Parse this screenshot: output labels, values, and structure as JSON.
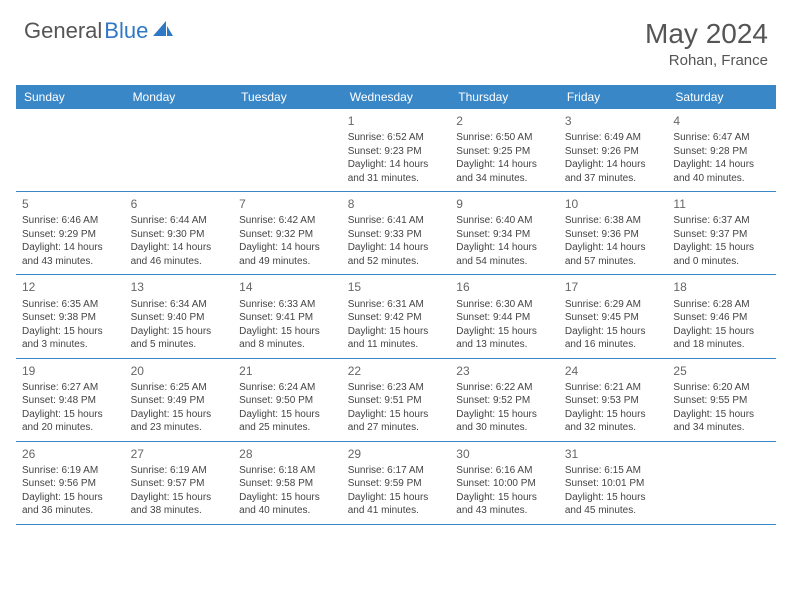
{
  "logo": {
    "text1": "General",
    "text2": "Blue"
  },
  "title": "May 2024",
  "location": "Rohan, France",
  "dayNames": [
    "Sunday",
    "Monday",
    "Tuesday",
    "Wednesday",
    "Thursday",
    "Friday",
    "Saturday"
  ],
  "colors": {
    "headerBg": "#3a87c8",
    "headerText": "#ffffff",
    "bodyText": "#444444",
    "titleText": "#555555",
    "border": "#3a87c8"
  },
  "weeks": [
    [
      null,
      null,
      null,
      {
        "n": "1",
        "sr": "Sunrise: 6:52 AM",
        "ss": "Sunset: 9:23 PM",
        "d1": "Daylight: 14 hours",
        "d2": "and 31 minutes."
      },
      {
        "n": "2",
        "sr": "Sunrise: 6:50 AM",
        "ss": "Sunset: 9:25 PM",
        "d1": "Daylight: 14 hours",
        "d2": "and 34 minutes."
      },
      {
        "n": "3",
        "sr": "Sunrise: 6:49 AM",
        "ss": "Sunset: 9:26 PM",
        "d1": "Daylight: 14 hours",
        "d2": "and 37 minutes."
      },
      {
        "n": "4",
        "sr": "Sunrise: 6:47 AM",
        "ss": "Sunset: 9:28 PM",
        "d1": "Daylight: 14 hours",
        "d2": "and 40 minutes."
      }
    ],
    [
      {
        "n": "5",
        "sr": "Sunrise: 6:46 AM",
        "ss": "Sunset: 9:29 PM",
        "d1": "Daylight: 14 hours",
        "d2": "and 43 minutes."
      },
      {
        "n": "6",
        "sr": "Sunrise: 6:44 AM",
        "ss": "Sunset: 9:30 PM",
        "d1": "Daylight: 14 hours",
        "d2": "and 46 minutes."
      },
      {
        "n": "7",
        "sr": "Sunrise: 6:42 AM",
        "ss": "Sunset: 9:32 PM",
        "d1": "Daylight: 14 hours",
        "d2": "and 49 minutes."
      },
      {
        "n": "8",
        "sr": "Sunrise: 6:41 AM",
        "ss": "Sunset: 9:33 PM",
        "d1": "Daylight: 14 hours",
        "d2": "and 52 minutes."
      },
      {
        "n": "9",
        "sr": "Sunrise: 6:40 AM",
        "ss": "Sunset: 9:34 PM",
        "d1": "Daylight: 14 hours",
        "d2": "and 54 minutes."
      },
      {
        "n": "10",
        "sr": "Sunrise: 6:38 AM",
        "ss": "Sunset: 9:36 PM",
        "d1": "Daylight: 14 hours",
        "d2": "and 57 minutes."
      },
      {
        "n": "11",
        "sr": "Sunrise: 6:37 AM",
        "ss": "Sunset: 9:37 PM",
        "d1": "Daylight: 15 hours",
        "d2": "and 0 minutes."
      }
    ],
    [
      {
        "n": "12",
        "sr": "Sunrise: 6:35 AM",
        "ss": "Sunset: 9:38 PM",
        "d1": "Daylight: 15 hours",
        "d2": "and 3 minutes."
      },
      {
        "n": "13",
        "sr": "Sunrise: 6:34 AM",
        "ss": "Sunset: 9:40 PM",
        "d1": "Daylight: 15 hours",
        "d2": "and 5 minutes."
      },
      {
        "n": "14",
        "sr": "Sunrise: 6:33 AM",
        "ss": "Sunset: 9:41 PM",
        "d1": "Daylight: 15 hours",
        "d2": "and 8 minutes."
      },
      {
        "n": "15",
        "sr": "Sunrise: 6:31 AM",
        "ss": "Sunset: 9:42 PM",
        "d1": "Daylight: 15 hours",
        "d2": "and 11 minutes."
      },
      {
        "n": "16",
        "sr": "Sunrise: 6:30 AM",
        "ss": "Sunset: 9:44 PM",
        "d1": "Daylight: 15 hours",
        "d2": "and 13 minutes."
      },
      {
        "n": "17",
        "sr": "Sunrise: 6:29 AM",
        "ss": "Sunset: 9:45 PM",
        "d1": "Daylight: 15 hours",
        "d2": "and 16 minutes."
      },
      {
        "n": "18",
        "sr": "Sunrise: 6:28 AM",
        "ss": "Sunset: 9:46 PM",
        "d1": "Daylight: 15 hours",
        "d2": "and 18 minutes."
      }
    ],
    [
      {
        "n": "19",
        "sr": "Sunrise: 6:27 AM",
        "ss": "Sunset: 9:48 PM",
        "d1": "Daylight: 15 hours",
        "d2": "and 20 minutes."
      },
      {
        "n": "20",
        "sr": "Sunrise: 6:25 AM",
        "ss": "Sunset: 9:49 PM",
        "d1": "Daylight: 15 hours",
        "d2": "and 23 minutes."
      },
      {
        "n": "21",
        "sr": "Sunrise: 6:24 AM",
        "ss": "Sunset: 9:50 PM",
        "d1": "Daylight: 15 hours",
        "d2": "and 25 minutes."
      },
      {
        "n": "22",
        "sr": "Sunrise: 6:23 AM",
        "ss": "Sunset: 9:51 PM",
        "d1": "Daylight: 15 hours",
        "d2": "and 27 minutes."
      },
      {
        "n": "23",
        "sr": "Sunrise: 6:22 AM",
        "ss": "Sunset: 9:52 PM",
        "d1": "Daylight: 15 hours",
        "d2": "and 30 minutes."
      },
      {
        "n": "24",
        "sr": "Sunrise: 6:21 AM",
        "ss": "Sunset: 9:53 PM",
        "d1": "Daylight: 15 hours",
        "d2": "and 32 minutes."
      },
      {
        "n": "25",
        "sr": "Sunrise: 6:20 AM",
        "ss": "Sunset: 9:55 PM",
        "d1": "Daylight: 15 hours",
        "d2": "and 34 minutes."
      }
    ],
    [
      {
        "n": "26",
        "sr": "Sunrise: 6:19 AM",
        "ss": "Sunset: 9:56 PM",
        "d1": "Daylight: 15 hours",
        "d2": "and 36 minutes."
      },
      {
        "n": "27",
        "sr": "Sunrise: 6:19 AM",
        "ss": "Sunset: 9:57 PM",
        "d1": "Daylight: 15 hours",
        "d2": "and 38 minutes."
      },
      {
        "n": "28",
        "sr": "Sunrise: 6:18 AM",
        "ss": "Sunset: 9:58 PM",
        "d1": "Daylight: 15 hours",
        "d2": "and 40 minutes."
      },
      {
        "n": "29",
        "sr": "Sunrise: 6:17 AM",
        "ss": "Sunset: 9:59 PM",
        "d1": "Daylight: 15 hours",
        "d2": "and 41 minutes."
      },
      {
        "n": "30",
        "sr": "Sunrise: 6:16 AM",
        "ss": "Sunset: 10:00 PM",
        "d1": "Daylight: 15 hours",
        "d2": "and 43 minutes."
      },
      {
        "n": "31",
        "sr": "Sunrise: 6:15 AM",
        "ss": "Sunset: 10:01 PM",
        "d1": "Daylight: 15 hours",
        "d2": "and 45 minutes."
      },
      null
    ]
  ]
}
